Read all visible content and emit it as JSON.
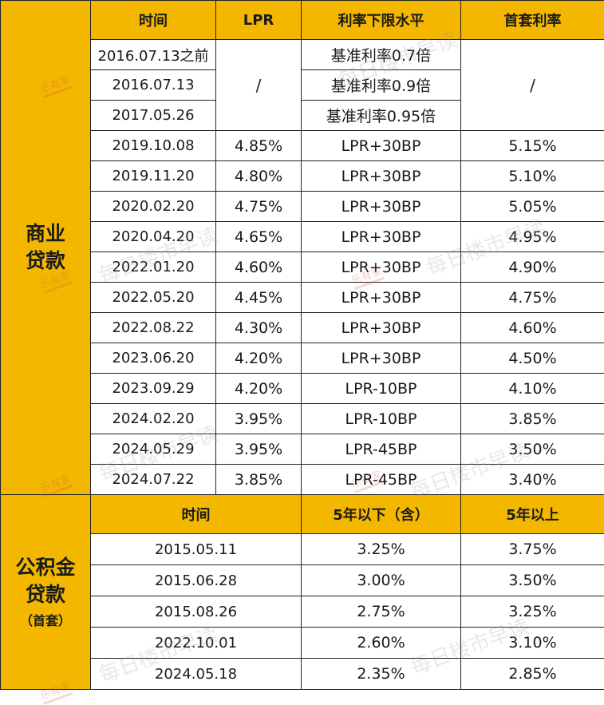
{
  "table": {
    "header": {
      "time": "时间",
      "lpr": "LPR",
      "floor": "利率下限水平",
      "first_rate": "首套利率"
    },
    "commercial_label": [
      "商业",
      "贷款"
    ],
    "early_rows": [
      {
        "date": "2016.07.13之前",
        "floor": "基准利率0.7倍"
      },
      {
        "date": "2016.07.13",
        "floor": "基准利率0.9倍"
      },
      {
        "date": "2017.05.26",
        "floor": "基准利率0.95倍"
      }
    ],
    "early_lpr": "/",
    "early_first_rate": "/",
    "lpr_rows": [
      {
        "date": "2019.10.08",
        "lpr": "4.85%",
        "floor": "LPR+30BP",
        "rate": "5.15%"
      },
      {
        "date": "2019.11.20",
        "lpr": "4.80%",
        "floor": "LPR+30BP",
        "rate": "5.10%"
      },
      {
        "date": "2020.02.20",
        "lpr": "4.75%",
        "floor": "LPR+30BP",
        "rate": "5.05%"
      },
      {
        "date": "2020.04.20",
        "lpr": "4.65%",
        "floor": "LPR+30BP",
        "rate": "4.95%"
      },
      {
        "date": "2022.01.20",
        "lpr": "4.60%",
        "floor": "LPR+30BP",
        "rate": "4.90%"
      },
      {
        "date": "2022.05.20",
        "lpr": "4.45%",
        "floor": "LPR+30BP",
        "rate": "4.75%"
      },
      {
        "date": "2022.08.22",
        "lpr": "4.30%",
        "floor": "LPR+30BP",
        "rate": "4.60%"
      },
      {
        "date": "2023.06.20",
        "lpr": "4.20%",
        "floor": "LPR+30BP",
        "rate": "4.50%"
      },
      {
        "date": "2023.09.29",
        "lpr": "4.20%",
        "floor": "LPR-10BP",
        "rate": "4.10%"
      },
      {
        "date": "2024.02.20",
        "lpr": "3.95%",
        "floor": "LPR-10BP",
        "rate": "3.85%"
      },
      {
        "date": "2024.05.29",
        "lpr": "3.95%",
        "floor": "LPR-45BP",
        "rate": "3.50%"
      },
      {
        "date": "2024.07.22",
        "lpr": "3.85%",
        "floor": "LPR-45BP",
        "rate": "3.40%"
      }
    ],
    "provident_label": [
      "公积金",
      "贷款"
    ],
    "provident_sub": "（首套）",
    "provident_header": {
      "time": "时间",
      "under5": "5年以下（含）",
      "over5": "5年以上"
    },
    "provident_rows": [
      {
        "date": "2015.05.11",
        "under5": "3.25%",
        "over5": "3.75%"
      },
      {
        "date": "2015.06.28",
        "under5": "3.00%",
        "over5": "3.50%"
      },
      {
        "date": "2015.08.26",
        "under5": "2.75%",
        "over5": "3.25%"
      },
      {
        "date": "2022.10.01",
        "under5": "2.60%",
        "over5": "3.10%"
      },
      {
        "date": "2024.05.18",
        "under5": "2.35%",
        "over5": "2.85%"
      }
    ]
  },
  "watermark": {
    "text": "每日楼市早读",
    "logo": "乐有家"
  }
}
